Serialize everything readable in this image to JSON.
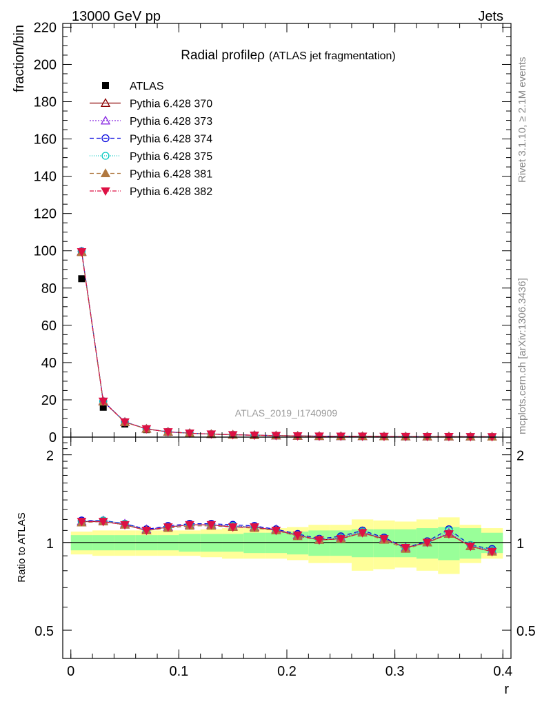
{
  "header": {
    "energy": "13000 GeV pp",
    "category": "Jets",
    "title_main": "Radial profileρ",
    "title_sub": "(ATLAS jet fragmentation)",
    "analysis": "ATLAS_2019_I1740909",
    "rivet": "Rivet 3.1.10, ≥ 2.1M events",
    "source": "mcplots.cern.ch [arXiv:1306.3436]"
  },
  "chart_data": {
    "type": "line",
    "xlabel": "r",
    "ylabel": "fraction/bin",
    "ratio_ylabel": "Ratio to ATLAS",
    "xlim": [
      -0.0075,
      0.4075
    ],
    "ylim": [
      0,
      222
    ],
    "ratio_ylim": [
      0.4,
      2.3
    ],
    "ratio_log": true,
    "x_ticks": [
      "0",
      "0.1",
      "0.2",
      "0.3",
      "0.4"
    ],
    "x_tick_values": [
      0,
      0.1,
      0.2,
      0.3,
      0.4
    ],
    "y_ticks": [
      "0",
      "20",
      "40",
      "60",
      "80",
      "100",
      "120",
      "140",
      "160",
      "180",
      "200",
      "220"
    ],
    "y_tick_values": [
      0,
      20,
      40,
      60,
      80,
      100,
      120,
      140,
      160,
      180,
      200,
      220
    ],
    "ratio_ticks": [
      "0.5",
      "1",
      "2"
    ],
    "ratio_tick_values": [
      0.5,
      1,
      2
    ],
    "x": [
      0.01,
      0.03,
      0.05,
      0.07,
      0.09,
      0.11,
      0.13,
      0.15,
      0.17,
      0.19,
      0.21,
      0.23,
      0.25,
      0.27,
      0.29,
      0.31,
      0.33,
      0.35,
      0.37,
      0.39
    ],
    "bin_edges": [
      0,
      0.02,
      0.04,
      0.06,
      0.08,
      0.1,
      0.12,
      0.14,
      0.16,
      0.18,
      0.2,
      0.22,
      0.24,
      0.26,
      0.28,
      0.3,
      0.32,
      0.34,
      0.36,
      0.38,
      0.4
    ],
    "data": {
      "name": "ATLAS",
      "values": [
        85,
        16,
        7,
        4,
        2.5,
        1.8,
        1.4,
        1.1,
        0.9,
        0.75,
        0.6,
        0.5,
        0.45,
        0.4,
        0.35,
        0.3,
        0.28,
        0.25,
        0.22,
        0.2
      ],
      "band_stat": [
        0.06,
        0.06,
        0.06,
        0.06,
        0.06,
        0.07,
        0.07,
        0.07,
        0.08,
        0.08,
        0.09,
        0.1,
        0.1,
        0.11,
        0.11,
        0.11,
        0.12,
        0.13,
        0.12,
        0.08
      ],
      "band_total": [
        0.09,
        0.1,
        0.1,
        0.1,
        0.1,
        0.1,
        0.11,
        0.12,
        0.12,
        0.12,
        0.13,
        0.15,
        0.15,
        0.2,
        0.19,
        0.18,
        0.2,
        0.22,
        0.15,
        0.12
      ]
    },
    "series": [
      {
        "name": "Pythia 6.428 370",
        "color": "#8b0000",
        "marker": "triangle-open",
        "dash": "",
        "values": [
          99.5,
          19.2,
          8.1,
          4.4,
          2.8,
          2.1,
          1.6,
          1.25,
          1.02,
          0.83,
          0.64,
          0.51,
          0.46,
          0.43,
          0.36,
          0.29,
          0.28,
          0.27,
          0.215,
          0.185
        ],
        "ratio": [
          1.18,
          1.18,
          1.15,
          1.1,
          1.13,
          1.15,
          1.15,
          1.13,
          1.13,
          1.1,
          1.06,
          1.02,
          1.03,
          1.08,
          1.03,
          0.96,
          1.0,
          1.07,
          0.97,
          0.93
        ]
      },
      {
        "name": "Pythia 6.428 373",
        "color": "#8a2be2",
        "marker": "triangle-open",
        "dash": "2,2",
        "values": [
          99.3,
          19.1,
          8.1,
          4.4,
          2.8,
          2.1,
          1.6,
          1.26,
          1.02,
          0.83,
          0.64,
          0.51,
          0.46,
          0.43,
          0.36,
          0.29,
          0.28,
          0.27,
          0.215,
          0.188
        ],
        "ratio": [
          1.18,
          1.19,
          1.16,
          1.11,
          1.13,
          1.15,
          1.15,
          1.14,
          1.13,
          1.11,
          1.06,
          1.02,
          1.04,
          1.09,
          1.03,
          0.96,
          1.0,
          1.08,
          0.97,
          0.94
        ]
      },
      {
        "name": "Pythia 6.428 374",
        "color": "#0000dd",
        "marker": "circle-open",
        "dash": "6,4",
        "values": [
          99.8,
          19.3,
          8.2,
          4.45,
          2.85,
          2.12,
          1.62,
          1.27,
          1.03,
          0.84,
          0.64,
          0.52,
          0.47,
          0.44,
          0.365,
          0.29,
          0.28,
          0.28,
          0.215,
          0.19
        ],
        "ratio": [
          1.19,
          1.19,
          1.16,
          1.11,
          1.14,
          1.16,
          1.16,
          1.15,
          1.14,
          1.11,
          1.07,
          1.03,
          1.05,
          1.1,
          1.04,
          0.96,
          1.01,
          1.11,
          0.98,
          0.95
        ]
      },
      {
        "name": "Pythia 6.428 375",
        "color": "#00c8c0",
        "marker": "circle-open",
        "dash": "1,2",
        "values": [
          99.6,
          19.2,
          8.15,
          4.42,
          2.83,
          2.11,
          1.61,
          1.26,
          1.02,
          0.83,
          0.64,
          0.51,
          0.46,
          0.43,
          0.36,
          0.29,
          0.28,
          0.28,
          0.215,
          0.188
        ],
        "ratio": [
          1.18,
          1.19,
          1.16,
          1.1,
          1.13,
          1.15,
          1.15,
          1.14,
          1.13,
          1.1,
          1.06,
          1.02,
          1.04,
          1.09,
          1.03,
          0.96,
          1.0,
          1.1,
          0.98,
          0.94
        ]
      },
      {
        "name": "Pythia 6.428 381",
        "color": "#b07840",
        "marker": "triangle-filled",
        "dash": "6,4",
        "values": [
          99.2,
          19.0,
          8.0,
          4.38,
          2.79,
          2.09,
          1.6,
          1.24,
          1.01,
          0.82,
          0.63,
          0.51,
          0.46,
          0.43,
          0.355,
          0.29,
          0.28,
          0.27,
          0.215,
          0.185
        ],
        "ratio": [
          1.17,
          1.18,
          1.15,
          1.1,
          1.12,
          1.14,
          1.14,
          1.13,
          1.12,
          1.1,
          1.05,
          1.02,
          1.03,
          1.08,
          1.02,
          0.95,
          1.0,
          1.07,
          0.97,
          0.93
        ]
      },
      {
        "name": "Pythia 6.428 382",
        "color": "#dd1144",
        "marker": "triangle-down-filled",
        "dash": "6,2,1,2",
        "values": [
          99.4,
          19.2,
          8.1,
          4.4,
          2.8,
          2.1,
          1.6,
          1.25,
          1.02,
          0.83,
          0.64,
          0.51,
          0.46,
          0.43,
          0.36,
          0.29,
          0.28,
          0.27,
          0.215,
          0.185
        ],
        "ratio": [
          1.18,
          1.18,
          1.15,
          1.1,
          1.13,
          1.15,
          1.15,
          1.13,
          1.13,
          1.1,
          1.06,
          1.02,
          1.03,
          1.08,
          1.03,
          0.96,
          1.0,
          1.07,
          0.97,
          0.93
        ]
      }
    ],
    "legend_position": "top-left",
    "colors": {
      "band_total": "#ffff99",
      "band_stat": "#99ff99",
      "data_marker": "#000000",
      "analysis_label": "#999999"
    }
  }
}
